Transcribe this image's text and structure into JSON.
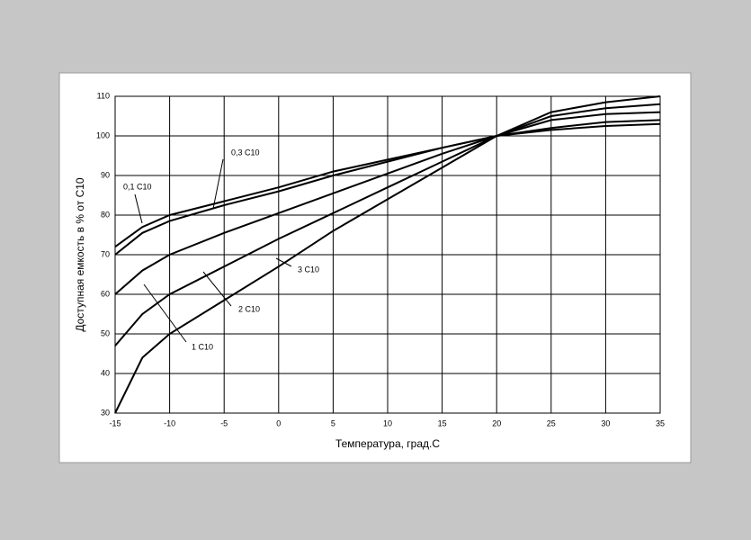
{
  "chart_data": {
    "type": "line",
    "x_label": "Температура, град.С",
    "y_label": "Доступная емкость в % от С10",
    "x": [
      -15,
      -12.5,
      -10,
      -5,
      0,
      5,
      10,
      15,
      20,
      25,
      30,
      35
    ],
    "series": [
      {
        "name": "0,1 C10",
        "color": "#000000",
        "values": [
          72,
          77,
          80,
          83.5,
          87,
          91,
          94,
          97,
          100,
          101.5,
          102.5,
          103
        ]
      },
      {
        "name": "0,3 C10",
        "color": "#000000",
        "values": [
          70,
          75.5,
          78.5,
          82.5,
          86,
          90,
          93.5,
          97,
          100,
          102,
          103.5,
          104
        ]
      },
      {
        "name": "1 C10",
        "color": "#000000",
        "values": [
          60,
          66,
          70,
          75.5,
          80.5,
          85.5,
          90.5,
          95.5,
          100,
          104,
          105.5,
          106
        ]
      },
      {
        "name": "2 C10",
        "color": "#000000",
        "values": [
          47,
          55,
          60,
          67,
          74,
          80.5,
          87,
          93.5,
          100,
          105,
          107,
          108
        ]
      },
      {
        "name": "3 C10",
        "color": "#000000",
        "values": [
          30,
          44,
          50,
          58.5,
          67,
          76,
          84,
          92,
          100,
          106,
          108.5,
          110
        ]
      }
    ],
    "xlim": [
      -15,
      35
    ],
    "xticks": [
      -15,
      -10,
      -5,
      0,
      5,
      10,
      15,
      20,
      25,
      30,
      35
    ],
    "ylim": [
      30,
      110
    ],
    "yticks": [
      30,
      40,
      50,
      60,
      70,
      80,
      90,
      100,
      110
    ],
    "grid": true
  }
}
